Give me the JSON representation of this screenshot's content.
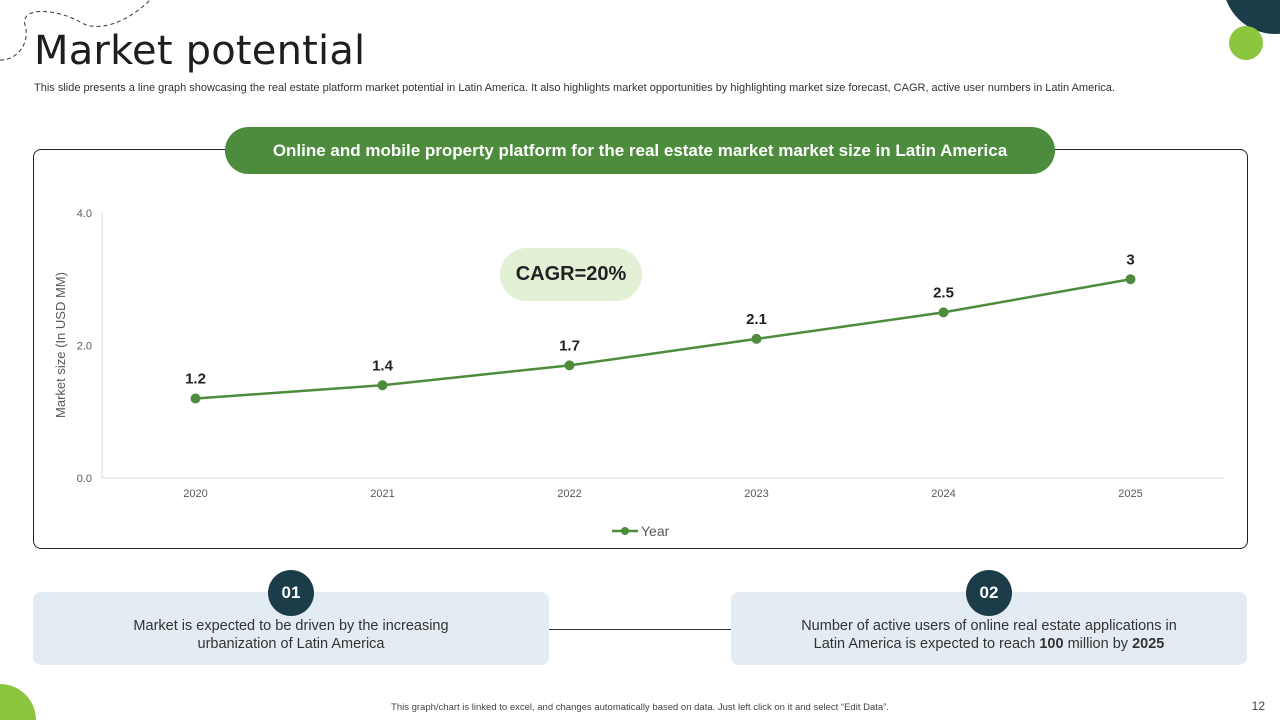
{
  "slide": {
    "title": "Market potential",
    "subtitle": "This slide presents a line graph showcasing the real estate platform market potential in Latin America. It also highlights market opportunities by highlighting market size forecast, CAGR, active user numbers in Latin America.",
    "banner": "Online and mobile property platform for the real estate market market size in Latin America",
    "cagr": "CAGR=20%",
    "footer_note": "This graph/chart is linked to excel, and changes automatically based on data. Just left click on it and select “Edit Data”.",
    "page_number": "12"
  },
  "info": [
    {
      "number": "01",
      "text": "Market is expected to be driven by the increasing urbanization of Latin America"
    },
    {
      "number": "02",
      "text_before": "Number of active users of online real estate applications in Latin America is expected to reach ",
      "bold1": "100",
      "text_middle": " million by ",
      "bold2": "2025"
    }
  ],
  "colors": {
    "line": "#4c8c3c",
    "banner": "#4c8c3c",
    "badge": "#1c3c4a",
    "cagr_bg": "#e2f0d6",
    "info_bg": "#e3ecf2",
    "accent_green": "#8cc63f",
    "accent_dark": "#1c3c4a"
  },
  "chart_data": {
    "type": "line",
    "title": "Online and mobile property platform for the real estate market market size in Latin America",
    "categories": [
      "2020",
      "2021",
      "2022",
      "2023",
      "2024",
      "2025"
    ],
    "series": [
      {
        "name": "Year",
        "values": [
          1.2,
          1.4,
          1.7,
          2.1,
          2.5,
          3
        ]
      }
    ],
    "data_labels": [
      "1.2",
      "1.4",
      "1.7",
      "2.1",
      "2.5",
      "3"
    ],
    "xlabel": "",
    "ylabel": "Market size (In USD MM)",
    "ylim": [
      0,
      4
    ],
    "yticks": [
      "0.0",
      "2.0",
      "4.0"
    ],
    "ytick_values": [
      0,
      2,
      4
    ],
    "legend": "bottom-center",
    "grid": false
  }
}
